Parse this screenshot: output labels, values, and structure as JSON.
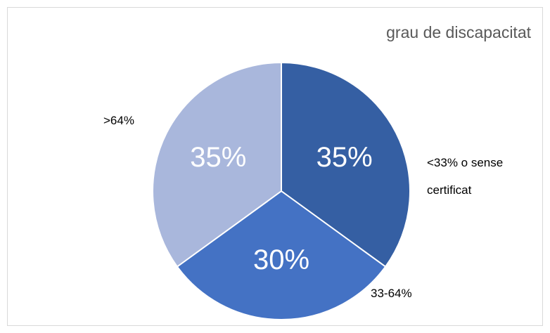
{
  "chart_data": {
    "type": "pie",
    "title": "grau de discapacitat",
    "categories": [
      "<33% o sense certificat",
      "33-64%",
      ">64%"
    ],
    "values": [
      35,
      30,
      35
    ],
    "value_labels": [
      "35%",
      "30%",
      "35%"
    ],
    "colors": [
      "#355fa3",
      "#4472c4",
      "#a9b7dc"
    ]
  }
}
